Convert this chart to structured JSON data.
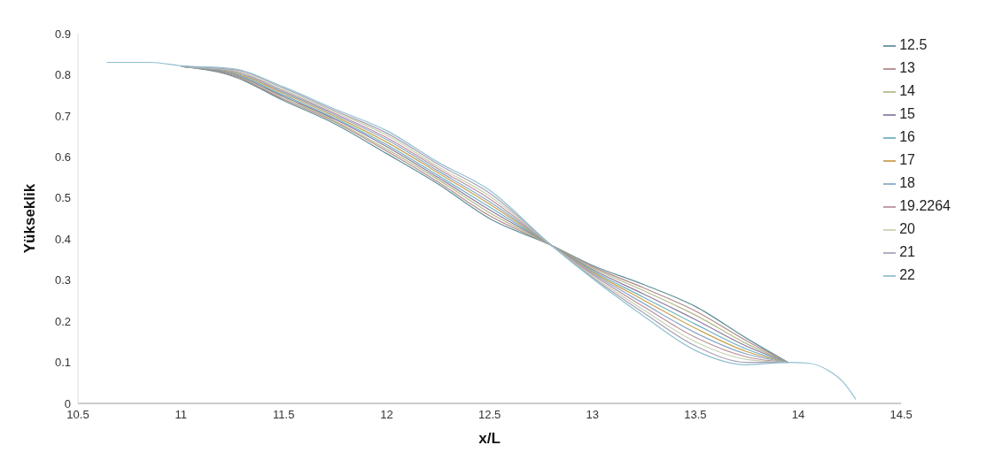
{
  "chart_data": {
    "type": "line",
    "xlabel": "x/L",
    "ylabel": "Yükseklik",
    "xlim": [
      10.5,
      14.5
    ],
    "xticks": [
      10.5,
      11,
      11.5,
      12,
      12.5,
      13,
      13.5,
      14,
      14.5
    ],
    "ylim": [
      0,
      0.9
    ],
    "yticks": [
      0,
      0.1,
      0.2,
      0.3,
      0.4,
      0.5,
      0.6,
      0.7,
      0.8,
      0.9
    ],
    "grid": false,
    "legend": "top right",
    "marker": "none",
    "line_style": "solid",
    "x": [
      10.64,
      10.85,
      11,
      11.25,
      11.5,
      11.75,
      12,
      12.25,
      12.5,
      12.8,
      13,
      13.25,
      13.5,
      13.75,
      13.95,
      14.05,
      14.15,
      14.22,
      14.28
    ],
    "series": [
      {
        "name": "12.5",
        "color": "#5f8f9a",
        "values": [
          null,
          null,
          0.82,
          0.797,
          0.737,
          0.68,
          0.608,
          0.534,
          0.45,
          0.385,
          0.336,
          0.289,
          0.236,
          0.158,
          0.1,
          null,
          null,
          null,
          null
        ]
      },
      {
        "name": "13",
        "color": "#b08a8a",
        "values": [
          null,
          null,
          0.82,
          0.799,
          0.74,
          0.684,
          0.614,
          0.539,
          0.457,
          0.385,
          0.333,
          0.281,
          0.225,
          0.152,
          0.1,
          null,
          null,
          null,
          null
        ]
      },
      {
        "name": "14",
        "color": "#b5b88a",
        "values": [
          null,
          null,
          0.82,
          0.801,
          0.744,
          0.687,
          0.619,
          0.545,
          0.464,
          0.385,
          0.33,
          0.274,
          0.215,
          0.145,
          0.1,
          null,
          null,
          null,
          null
        ]
      },
      {
        "name": "15",
        "color": "#8a7ba0",
        "values": [
          null,
          null,
          0.82,
          0.802,
          0.747,
          0.691,
          0.625,
          0.55,
          0.471,
          0.385,
          0.326,
          0.266,
          0.204,
          0.139,
          0.1,
          null,
          null,
          null,
          null
        ]
      },
      {
        "name": "16",
        "color": "#6fb0c0",
        "values": [
          null,
          null,
          0.82,
          0.804,
          0.75,
          0.694,
          0.63,
          0.555,
          0.478,
          0.385,
          0.323,
          0.258,
          0.193,
          0.132,
          0.1,
          null,
          null,
          null,
          null
        ]
      },
      {
        "name": "17",
        "color": "#c8a050",
        "values": [
          null,
          null,
          0.82,
          0.806,
          0.754,
          0.698,
          0.636,
          0.561,
          0.485,
          0.385,
          0.32,
          0.251,
          0.183,
          0.126,
          0.1,
          null,
          null,
          null,
          null
        ]
      },
      {
        "name": "18",
        "color": "#8aa8c8",
        "values": [
          null,
          null,
          0.82,
          0.808,
          0.757,
          0.702,
          0.642,
          0.566,
          0.491,
          0.385,
          0.317,
          0.243,
          0.172,
          0.12,
          0.1,
          null,
          null,
          null,
          null
        ]
      },
      {
        "name": "19.2264",
        "color": "#b890a0",
        "values": [
          null,
          null,
          0.82,
          0.81,
          0.76,
          0.705,
          0.647,
          0.571,
          0.498,
          0.385,
          0.314,
          0.235,
          0.161,
          0.113,
          0.1,
          null,
          null,
          null,
          null
        ]
      },
      {
        "name": "20",
        "color": "#c8d0b0",
        "values": [
          null,
          null,
          0.82,
          0.811,
          0.763,
          0.709,
          0.653,
          0.576,
          0.505,
          0.385,
          0.31,
          0.227,
          0.15,
          0.107,
          0.1,
          null,
          null,
          null,
          null
        ]
      },
      {
        "name": "21",
        "color": "#a8a0b8",
        "values": [
          null,
          null,
          0.82,
          0.813,
          0.767,
          0.712,
          0.658,
          0.582,
          0.512,
          0.385,
          0.307,
          0.22,
          0.14,
          0.1,
          0.1,
          null,
          null,
          null,
          null
        ]
      },
      {
        "name": "22",
        "color": "#90c0d0",
        "values": [
          0.83,
          0.83,
          0.822,
          0.815,
          0.77,
          0.716,
          0.664,
          0.587,
          0.519,
          0.385,
          0.304,
          0.212,
          0.129,
          0.094,
          0.1,
          0.098,
          0.079,
          0.051,
          0.01
        ]
      }
    ]
  }
}
